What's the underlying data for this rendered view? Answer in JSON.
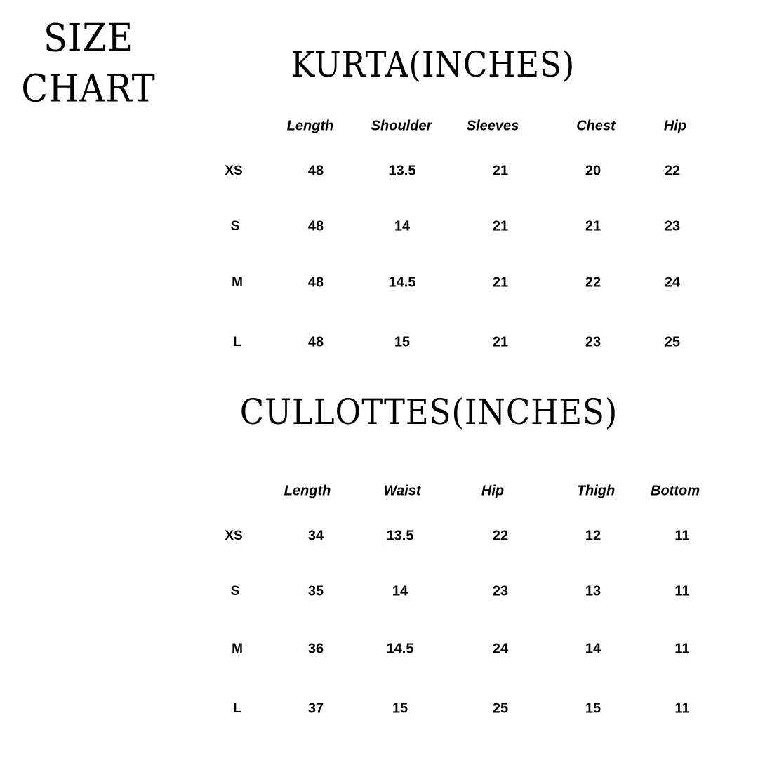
{
  "heading": {
    "line1": "SIZE",
    "line2": "CHART"
  },
  "kurta": {
    "title": "KURTA(INCHES)",
    "columns": [
      "Length",
      "Shoulder",
      "Sleeves",
      "Chest",
      "Hip"
    ],
    "rows": [
      {
        "size": "XS",
        "values": [
          "48",
          "13.5",
          "21",
          "20",
          "22"
        ]
      },
      {
        "size": "S",
        "values": [
          "48",
          "14",
          "21",
          "21",
          "23"
        ]
      },
      {
        "size": "M",
        "values": [
          "48",
          "14.5",
          "21",
          "22",
          "24"
        ]
      },
      {
        "size": "L",
        "values": [
          "48",
          "15",
          "21",
          "23",
          "25"
        ]
      }
    ]
  },
  "cullottes": {
    "title": "CULLOTTES(INCHES)",
    "columns": [
      "Length",
      "Waist",
      "Hip",
      "Thigh",
      "Bottom"
    ],
    "rows": [
      {
        "size": "XS",
        "values": [
          "34",
          "13.5",
          "22",
          "12",
          "11"
        ]
      },
      {
        "size": "S",
        "values": [
          "35",
          "14",
          "23",
          "13",
          "11"
        ]
      },
      {
        "size": "M",
        "values": [
          "36",
          "14.5",
          "24",
          "14",
          "11"
        ]
      },
      {
        "size": "L",
        "values": [
          "37",
          "15",
          "25",
          "15",
          "11"
        ]
      }
    ]
  }
}
